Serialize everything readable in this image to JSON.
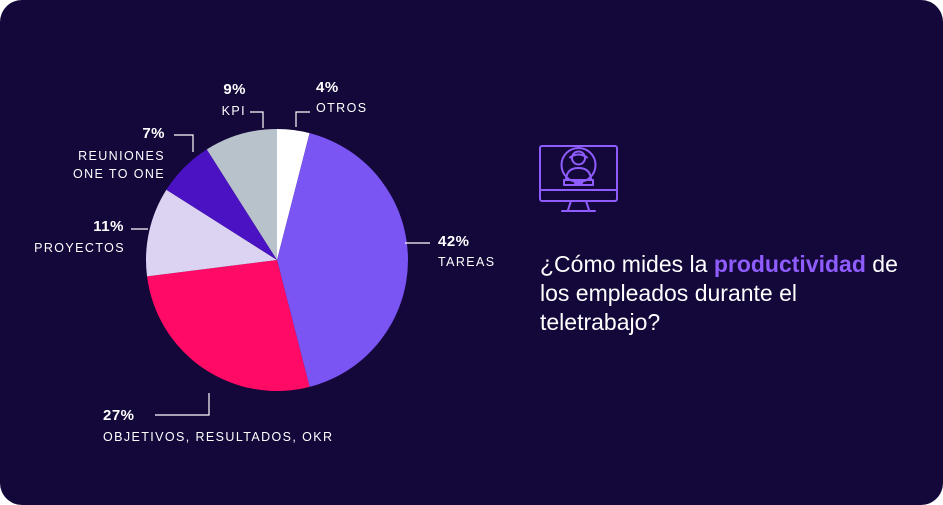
{
  "chart_data": {
    "type": "pie",
    "slices": [
      {
        "label": "OTROS",
        "value": 4,
        "pct_label": "4%",
        "color": "#ffffff"
      },
      {
        "label": "TAREAS",
        "value": 42,
        "pct_label": "42%",
        "color": "#7b54f4"
      },
      {
        "label": "OBJETIVOS, RESULTADOS, OKR",
        "value": 27,
        "pct_label": "27%",
        "color": "#ff0a64"
      },
      {
        "label": "PROYECTOS",
        "value": 11,
        "pct_label": "11%",
        "color": "#dcd2f2"
      },
      {
        "label": "REUNIONES ONE TO ONE",
        "label_lines": [
          "REUNIONES",
          "ONE TO ONE"
        ],
        "value": 7,
        "pct_label": "7%",
        "color": "#4a12c2"
      },
      {
        "label": "KPI",
        "value": 9,
        "pct_label": "9%",
        "color": "#b8c2ca"
      }
    ]
  },
  "question": {
    "before": "¿Cómo mides la ",
    "highlight": "productividad",
    "after": " de los empleados durante el teletrabajo?"
  },
  "colors": {
    "background": "#14073a",
    "accent": "#8f5cff",
    "leader_line": "#ffffff"
  },
  "icons": {
    "illustration": "monitor-user-icon"
  }
}
